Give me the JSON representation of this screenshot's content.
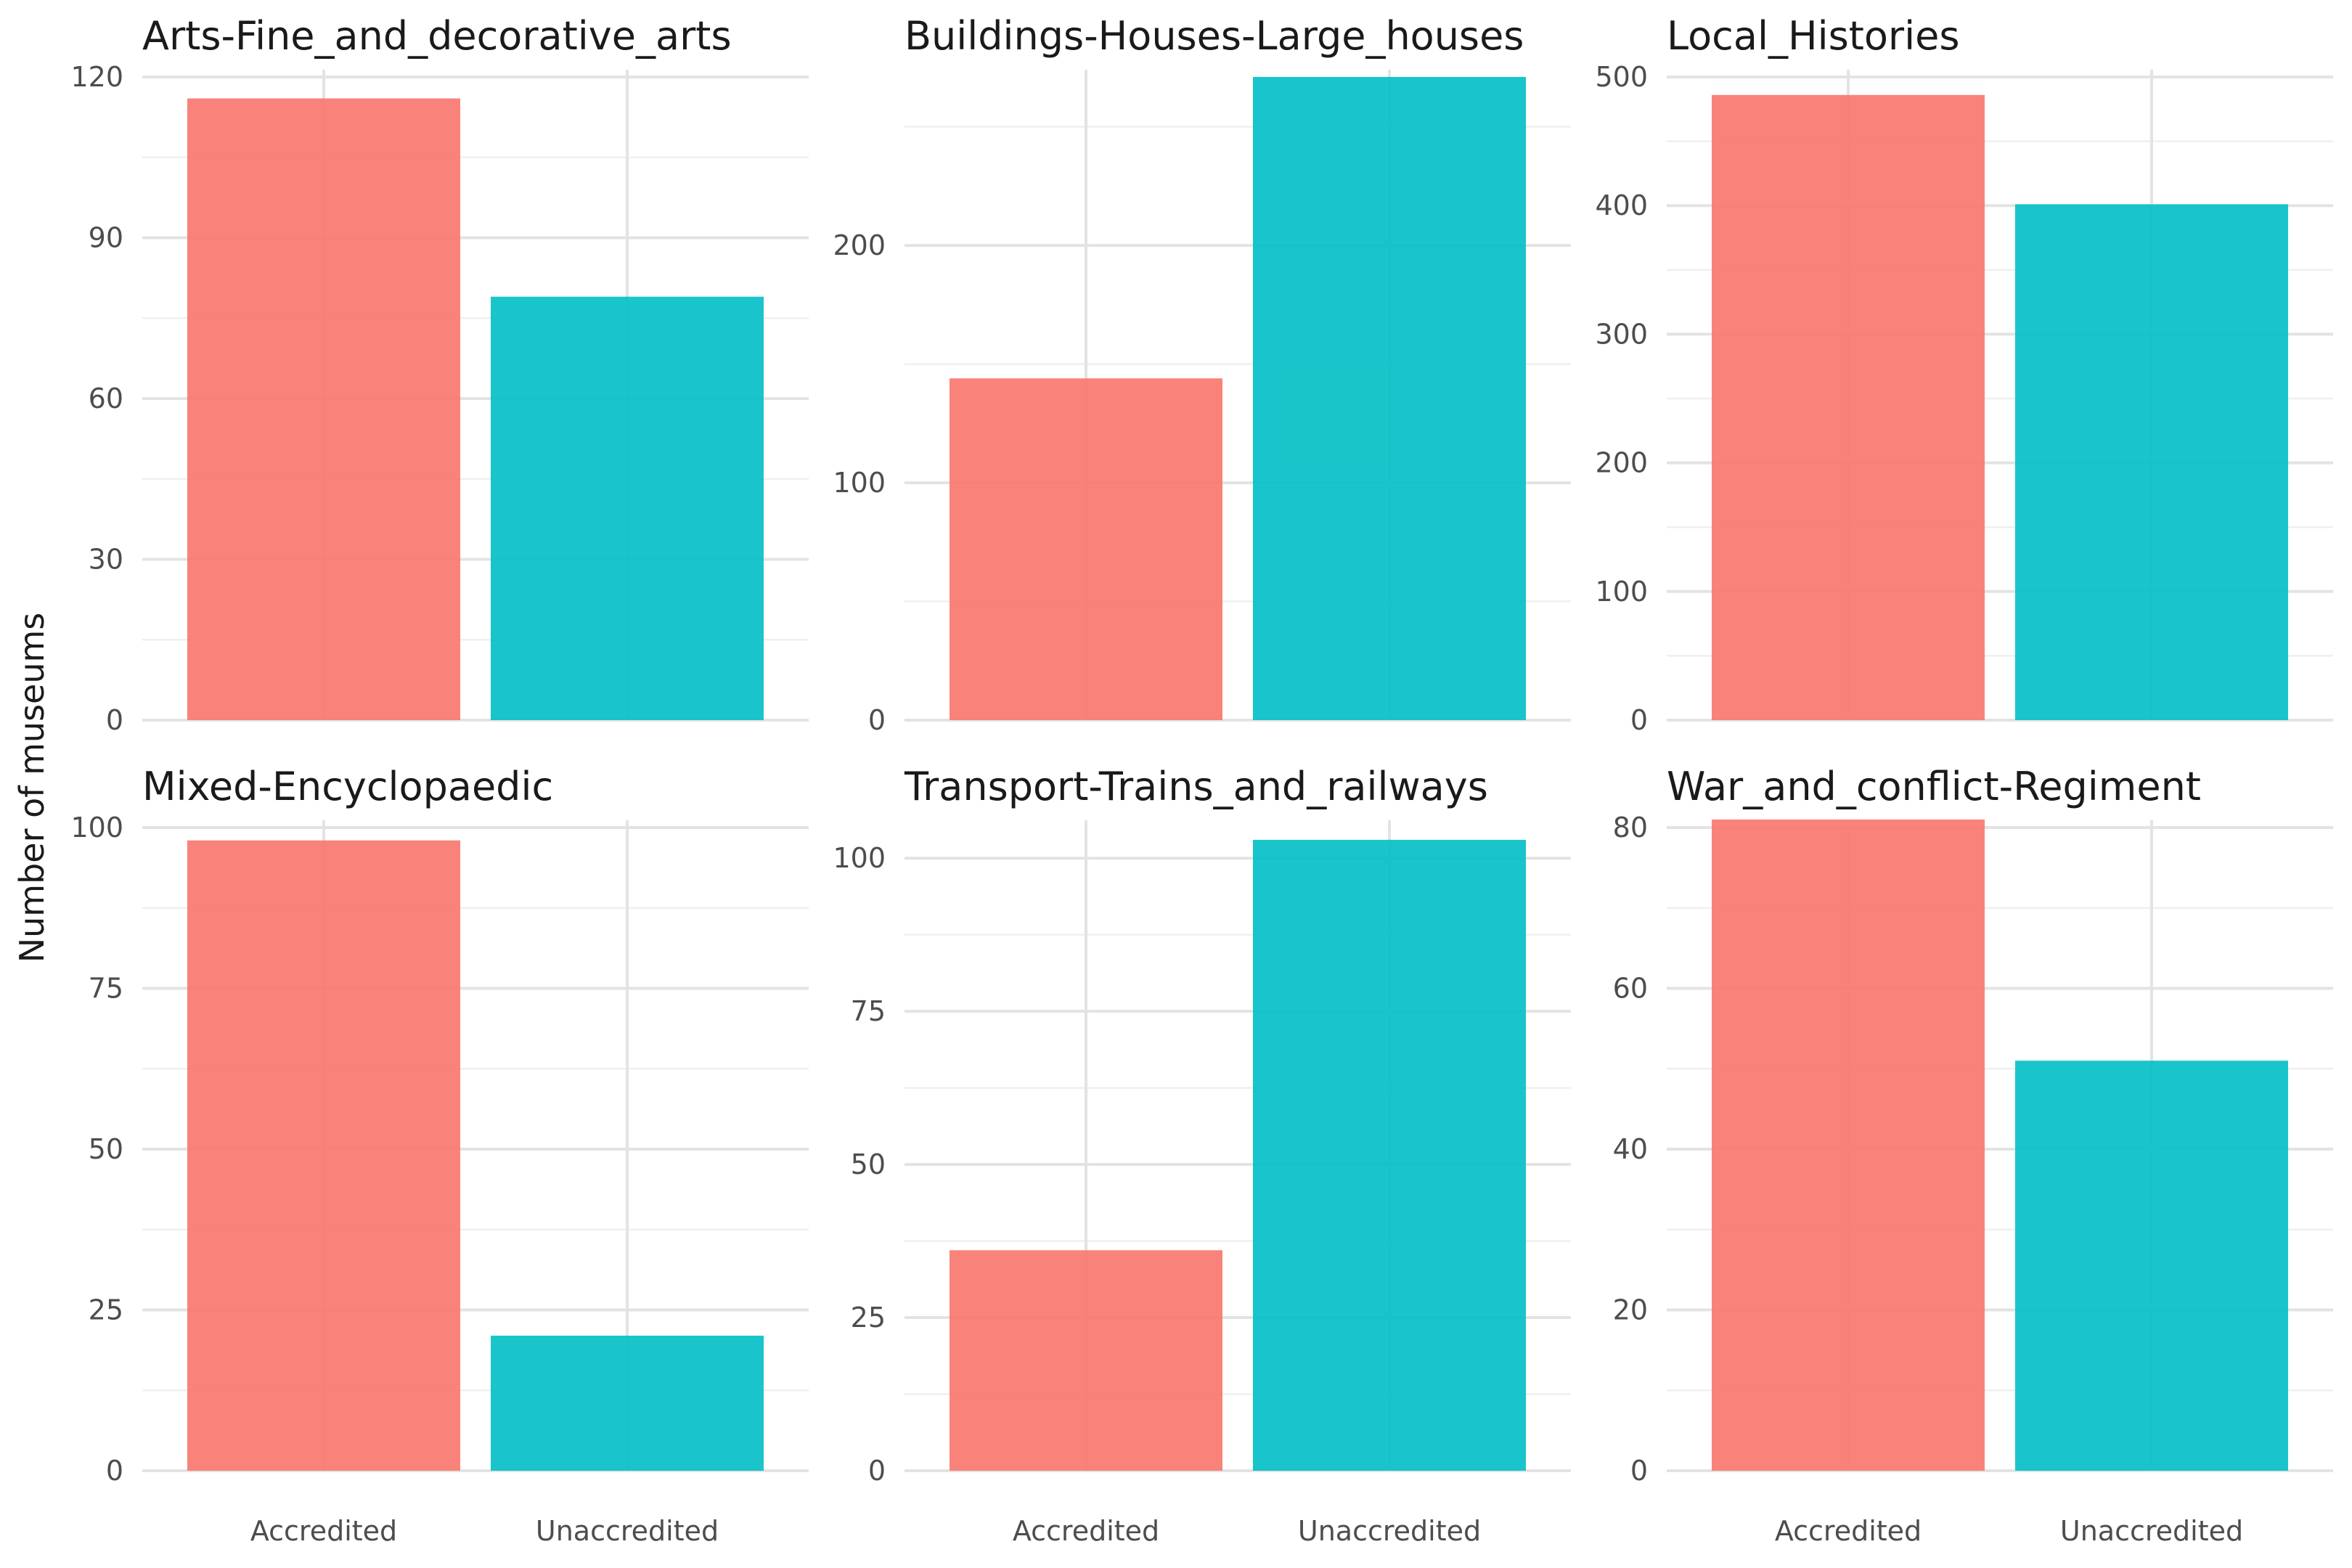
{
  "chart_data": {
    "type": "bar",
    "ylabel": "Number of museums",
    "categories": [
      "Accredited",
      "Unaccredited"
    ],
    "colors": {
      "Accredited": "#F8766D",
      "Unaccredited": "#00BFC4"
    },
    "bar_opacity": 0.9,
    "grid": true,
    "legend": "none",
    "facets": [
      {
        "title": "Arts-Fine_and_decorative_arts",
        "values": [
          116,
          79
        ],
        "ylim": [
          0,
          120
        ],
        "yticks": [
          0,
          30,
          60,
          90,
          120
        ]
      },
      {
        "title": "Buildings-Houses-Large_houses",
        "values": [
          144,
          271
        ],
        "ylim": [
          0,
          271
        ],
        "yticks": [
          0,
          100,
          200
        ]
      },
      {
        "title": "Local_Histories",
        "values": [
          486,
          401
        ],
        "ylim": [
          0,
          500
        ],
        "yticks": [
          0,
          100,
          200,
          300,
          400,
          500
        ]
      },
      {
        "title": "Mixed-Encyclopaedic",
        "values": [
          98,
          21
        ],
        "ylim": [
          0,
          100
        ],
        "yticks": [
          0,
          25,
          50,
          75,
          100
        ]
      },
      {
        "title": "Transport-Trains_and_railways",
        "values": [
          36,
          103
        ],
        "ylim": [
          0,
          105
        ],
        "yticks": [
          0,
          25,
          50,
          75,
          100
        ]
      },
      {
        "title": "War_and_conflict-Regiment",
        "values": [
          81,
          51
        ],
        "ylim": [
          0,
          80
        ],
        "yticks": [
          0,
          20,
          40,
          60,
          80
        ]
      }
    ]
  }
}
